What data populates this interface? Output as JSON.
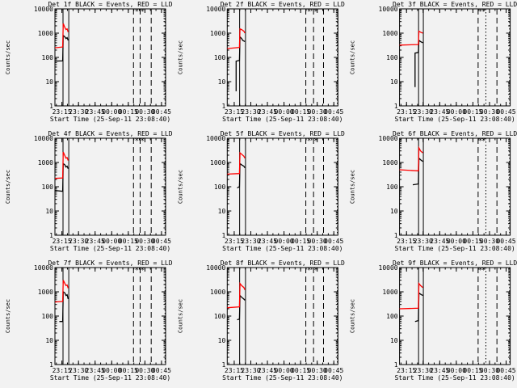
{
  "colors": {
    "background": "#f2f2f2",
    "events": "#000000",
    "lld": "#ff0000",
    "axes": "#000000"
  },
  "chart_data": [
    {
      "type": "line",
      "title": "Det 1f BLACK = Events, RED = LLD",
      "xlabel": "Start Time (25-Sep-11 23:08:40)",
      "ylabel": "Counts/sec",
      "yscale": "log",
      "ylim": [
        1,
        10000
      ],
      "x_range_minutes_after_23h08": [
        0,
        100
      ],
      "xticks": [
        "23:15",
        "23:30",
        "23:45",
        "00:00",
        "00:15",
        "00:30",
        "00:45"
      ],
      "yticks": [
        "1",
        "10",
        "100",
        "1000",
        "10000"
      ],
      "series": [
        {
          "name": "BLACK = Events",
          "color": "#000000",
          "points": [
            [
              0,
              70
            ],
            [
              7,
              72
            ],
            [
              7.5,
              800
            ],
            [
              9,
              700
            ],
            [
              10,
              600
            ],
            [
              11,
              650
            ],
            [
              12,
              500
            ]
          ]
        },
        {
          "name": "RED = LLD",
          "color": "#ff0000",
          "points": [
            [
              0,
              250
            ],
            [
              7,
              270
            ],
            [
              7.5,
              2500
            ],
            [
              9,
              1700
            ],
            [
              10,
              1400
            ],
            [
              11,
              1500
            ],
            [
              12,
              1100
            ]
          ]
        }
      ],
      "solid_vlines": [
        7.3,
        12.5
      ],
      "dashed_vlines": [
        71,
        77,
        87
      ],
      "dotted_vlines": [
        99.5
      ],
      "stars": [
        74,
        79
      ]
    },
    {
      "type": "line",
      "title": "Det 2f BLACK = Events, RED = LLD",
      "xlabel": "Start Time (25-Sep-11 23:08:40)",
      "ylabel": "Counts/sec",
      "yscale": "log",
      "ylim": [
        1,
        10000
      ],
      "x_range_minutes_after_23h08": [
        0,
        100
      ],
      "xticks": [
        "23:15",
        "23:30",
        "23:45",
        "00:00",
        "00:15",
        "00:30",
        "00:45"
      ],
      "yticks": [
        "1",
        "10",
        "100",
        "1000",
        "10000"
      ],
      "series": [
        {
          "name": "BLACK = Events",
          "color": "#000000",
          "points": [
            [
              8,
              4
            ],
            [
              8,
              70
            ],
            [
              11,
              75
            ],
            [
              11.5,
              700
            ],
            [
              13,
              600
            ],
            [
              14,
              500
            ],
            [
              16,
              450
            ]
          ]
        },
        {
          "name": "RED = LLD",
          "color": "#ff0000",
          "points": [
            [
              0,
              230
            ],
            [
              11,
              260
            ],
            [
              11.5,
              1500
            ],
            [
              13,
              1400
            ],
            [
              15,
              1200
            ],
            [
              16,
              1000
            ]
          ]
        }
      ],
      "solid_vlines": [
        11.2,
        16.5
      ],
      "dashed_vlines": [
        71,
        78,
        87
      ],
      "dotted_vlines": [
        99.5
      ],
      "stars": [
        74,
        80
      ]
    },
    {
      "type": "line",
      "title": "Det 3f BLACK = Events, RED = LLD",
      "xlabel": "Start Time (25-Sep-11 23:08:40)",
      "ylabel": "Counts/sec",
      "yscale": "log",
      "ylim": [
        1,
        10000
      ],
      "x_range_minutes_after_23h08": [
        0,
        100
      ],
      "xticks": [
        "23:15",
        "23:30",
        "23:45",
        "00:00",
        "00:15",
        "00:30",
        "00:45"
      ],
      "yticks": [
        "1",
        "10",
        "100",
        "1000",
        "10000"
      ],
      "series": [
        {
          "name": "BLACK = Events",
          "color": "#000000",
          "points": [
            [
              14,
              6
            ],
            [
              14,
              150
            ],
            [
              17,
              160
            ],
            [
              17.5,
              500
            ],
            [
              19,
              450
            ],
            [
              21,
              400
            ]
          ]
        },
        {
          "name": "RED = LLD",
          "color": "#ff0000",
          "points": [
            [
              0,
              320
            ],
            [
              17,
              340
            ],
            [
              17.5,
              1200
            ],
            [
              19,
              1100
            ],
            [
              21,
              1000
            ]
          ]
        }
      ],
      "solid_vlines": [
        17.2,
        21.5
      ],
      "dashed_vlines": [
        71,
        88
      ],
      "dotted_vlines": [
        78,
        99.5
      ],
      "stars": [
        73,
        76
      ]
    },
    {
      "type": "line",
      "title": "Det 4f BLACK = Events, RED = LLD",
      "xlabel": "Start Time (25-Sep-11 23:08:40)",
      "ylabel": "Counts/sec",
      "yscale": "log",
      "ylim": [
        1,
        10000
      ],
      "x_range_minutes_after_23h08": [
        0,
        100
      ],
      "xticks": [
        "23:15",
        "23:30",
        "23:45",
        "00:00",
        "00:15",
        "00:30",
        "00:45"
      ],
      "yticks": [
        "1",
        "10",
        "100",
        "1000",
        "10000"
      ],
      "series": [
        {
          "name": "BLACK = Events",
          "color": "#000000",
          "points": [
            [
              0,
              70
            ],
            [
              7,
              65
            ],
            [
              7.5,
              900
            ],
            [
              9,
              800
            ],
            [
              10,
              650
            ],
            [
              11,
              700
            ],
            [
              12,
              550
            ]
          ]
        },
        {
          "name": "RED = LLD",
          "color": "#ff0000",
          "points": [
            [
              0,
              220
            ],
            [
              7,
              230
            ],
            [
              7.5,
              2700
            ],
            [
              9,
              1900
            ],
            [
              10,
              1500
            ],
            [
              11,
              1600
            ],
            [
              12,
              1200
            ]
          ]
        }
      ],
      "solid_vlines": [
        7.3,
        12.5
      ],
      "dashed_vlines": [
        71,
        77,
        87
      ],
      "dotted_vlines": [
        99.5
      ],
      "stars": [
        74,
        79
      ]
    },
    {
      "type": "line",
      "title": "Det 5f BLACK = Events, RED = LLD",
      "xlabel": "Start Time (25-Sep-11 23:08:40)",
      "ylabel": "Counts/sec",
      "yscale": "log",
      "ylim": [
        1,
        10000
      ],
      "x_range_minutes_after_23h08": [
        0,
        100
      ],
      "xticks": [
        "23:15",
        "23:30",
        "23:45",
        "00:00",
        "00:15",
        "00:30",
        "00:45"
      ],
      "yticks": [
        "1",
        "10",
        "100",
        "1000",
        "10000"
      ],
      "series": [
        {
          "name": "BLACK = Events",
          "color": "#000000",
          "points": [
            [
              9,
              90
            ],
            [
              11,
              100
            ],
            [
              11.5,
              900
            ],
            [
              13,
              800
            ],
            [
              15,
              700
            ],
            [
              16,
              600
            ]
          ]
        },
        {
          "name": "RED = LLD",
          "color": "#ff0000",
          "points": [
            [
              0,
              330
            ],
            [
              11,
              350
            ],
            [
              11.5,
              2500
            ],
            [
              13,
              2200
            ],
            [
              15,
              1800
            ],
            [
              16,
              1500
            ]
          ]
        }
      ],
      "solid_vlines": [
        11.2,
        16.5
      ],
      "dashed_vlines": [
        71,
        78,
        87
      ],
      "dotted_vlines": [
        99.5
      ],
      "stars": [
        74,
        80
      ]
    },
    {
      "type": "line",
      "title": "Det 6f BLACK = Events, RED = LLD",
      "xlabel": "Start Time (25-Sep-11 23:08:40)",
      "ylabel": "Counts/sec",
      "yscale": "log",
      "ylim": [
        1,
        10000
      ],
      "x_range_minutes_after_23h08": [
        0,
        100
      ],
      "xticks": [
        "23:15",
        "23:30",
        "23:45",
        "00:00",
        "00:15",
        "00:30",
        "00:45"
      ],
      "yticks": [
        "1",
        "10",
        "100",
        "1000",
        "10000"
      ],
      "series": [
        {
          "name": "BLACK = Events",
          "color": "#000000",
          "points": [
            [
              12,
              120
            ],
            [
              17,
              130
            ],
            [
              17.5,
              1500
            ],
            [
              19,
              1300
            ],
            [
              21,
              1100
            ]
          ]
        },
        {
          "name": "RED = LLD",
          "color": "#ff0000",
          "points": [
            [
              0,
              500
            ],
            [
              17,
              450
            ],
            [
              17.5,
              4000
            ],
            [
              19,
              3000
            ],
            [
              21,
              2500
            ]
          ]
        }
      ],
      "solid_vlines": [
        17.2,
        21.5
      ],
      "dashed_vlines": [
        71,
        88
      ],
      "dotted_vlines": [
        78,
        99.5
      ],
      "stars": [
        73,
        76
      ]
    },
    {
      "type": "line",
      "title": "Det 7f BLACK = Events, RED = LLD",
      "xlabel": "Start Time (25-Sep-11 23:08:40)",
      "ylabel": "Counts/sec",
      "yscale": "log",
      "ylim": [
        1,
        10000
      ],
      "x_range_minutes_after_23h08": [
        0,
        100
      ],
      "xticks": [
        "23:15",
        "23:30",
        "23:45",
        "00:00",
        "00:15",
        "00:30",
        "00:45"
      ],
      "yticks": [
        "1",
        "10",
        "100",
        "1000",
        "10000"
      ],
      "series": [
        {
          "name": "BLACK = Events",
          "color": "#000000",
          "points": [
            [
              4,
              60
            ],
            [
              7,
              60
            ],
            [
              7.5,
              1000
            ],
            [
              9,
              900
            ],
            [
              10,
              700
            ],
            [
              11,
              750
            ],
            [
              12,
              500
            ]
          ]
        },
        {
          "name": "RED = LLD",
          "color": "#ff0000",
          "points": [
            [
              0,
              380
            ],
            [
              7,
              400
            ],
            [
              7.5,
              3000
            ],
            [
              9,
              2200
            ],
            [
              10,
              1800
            ],
            [
              11,
              1900
            ],
            [
              12,
              1400
            ]
          ]
        }
      ],
      "solid_vlines": [
        7.3,
        12.5
      ],
      "dashed_vlines": [
        71,
        77,
        87
      ],
      "dotted_vlines": [
        99.5
      ],
      "stars": [
        74,
        79
      ]
    },
    {
      "type": "line",
      "title": "Det 8f BLACK = Events, RED = LLD",
      "xlabel": "Start Time (25-Sep-11 23:08:40)",
      "ylabel": "Counts/sec",
      "yscale": "log",
      "ylim": [
        1,
        10000
      ],
      "x_range_minutes_after_23h08": [
        0,
        100
      ],
      "xticks": [
        "23:15",
        "23:30",
        "23:45",
        "00:00",
        "00:15",
        "00:30",
        "00:45"
      ],
      "yticks": [
        "1",
        "10",
        "100",
        "1000",
        "10000"
      ],
      "series": [
        {
          "name": "BLACK = Events",
          "color": "#000000",
          "points": [
            [
              9,
              70
            ],
            [
              11,
              75
            ],
            [
              11.5,
              700
            ],
            [
              13,
              600
            ],
            [
              15,
              500
            ],
            [
              16,
              450
            ]
          ]
        },
        {
          "name": "RED = LLD",
          "color": "#ff0000",
          "points": [
            [
              0,
              220
            ],
            [
              11,
              240
            ],
            [
              11.5,
              2200
            ],
            [
              13,
              1800
            ],
            [
              15,
              1500
            ],
            [
              16,
              1200
            ]
          ]
        }
      ],
      "solid_vlines": [
        11.2,
        16.5
      ],
      "dashed_vlines": [
        71,
        78,
        87
      ],
      "dotted_vlines": [
        99.5
      ],
      "stars": [
        74,
        80
      ]
    },
    {
      "type": "line",
      "title": "Det 9f BLACK = Events, RED = LLD",
      "xlabel": "Start Time (25-Sep-11 23:08:40)",
      "ylabel": "Counts/sec",
      "yscale": "log",
      "ylim": [
        1,
        10000
      ],
      "x_range_minutes_after_23h08": [
        0,
        100
      ],
      "xticks": [
        "23:15",
        "23:30",
        "23:45",
        "00:00",
        "00:15",
        "00:30",
        "00:45"
      ],
      "yticks": [
        "1",
        "10",
        "100",
        "1000",
        "10000"
      ],
      "series": [
        {
          "name": "BLACK = Events",
          "color": "#000000",
          "points": [
            [
              14,
              60
            ],
            [
              17,
              65
            ],
            [
              17.5,
              900
            ],
            [
              19,
              800
            ],
            [
              21,
              700
            ]
          ]
        },
        {
          "name": "RED = LLD",
          "color": "#ff0000",
          "points": [
            [
              0,
              200
            ],
            [
              17,
              210
            ],
            [
              17.5,
              2200
            ],
            [
              19,
              1800
            ],
            [
              21,
              1500
            ]
          ]
        }
      ],
      "solid_vlines": [
        17.2,
        21.5
      ],
      "dashed_vlines": [
        71,
        88
      ],
      "dotted_vlines": [
        78,
        99.5
      ],
      "stars": [
        73,
        76
      ]
    }
  ]
}
